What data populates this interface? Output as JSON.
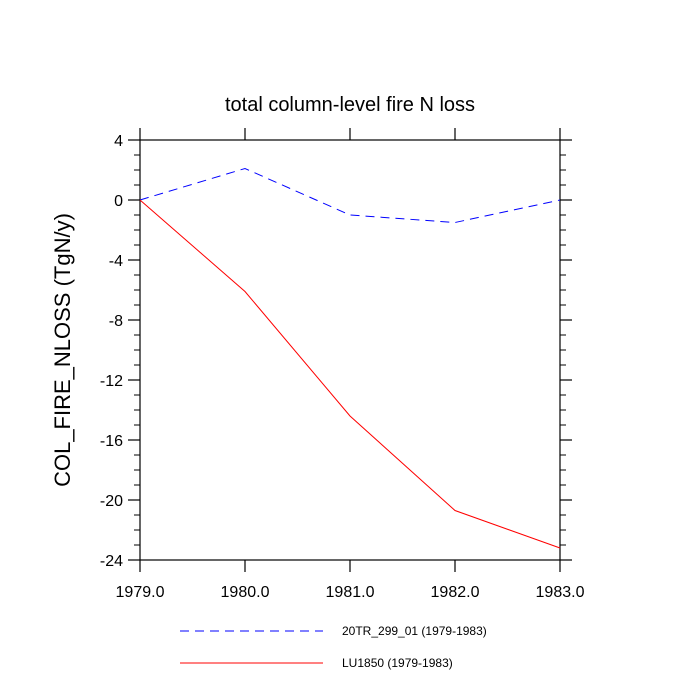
{
  "chart_data": {
    "type": "line",
    "title": "total column-level fire N loss",
    "xlabel": "",
    "ylabel": "COL_FIRE_NLOSS  (TgN/y)",
    "x": [
      1979,
      1980,
      1981,
      1982,
      1983
    ],
    "xlim": [
      1979,
      1983
    ],
    "ylim": [
      -24,
      4
    ],
    "xticks": [
      1979,
      1980,
      1981,
      1982,
      1983
    ],
    "xtick_labels": [
      "1979.0",
      "1980.0",
      "1981.0",
      "1982.0",
      "1983.0"
    ],
    "yticks": [
      4,
      0,
      -4,
      -8,
      -12,
      -16,
      -20,
      -24
    ],
    "ytick_labels": [
      "4",
      "0",
      "-4",
      "-8",
      "-12",
      "-16",
      "-20",
      "-24"
    ],
    "grid": false,
    "legend_position": "bottom",
    "series": [
      {
        "name": "20TR_299_01 (1979-1983)",
        "values": [
          0,
          2.1,
          -1.0,
          -1.5,
          0
        ],
        "color": "#0000ff",
        "style": "dashed"
      },
      {
        "name": "LU1850 (1979-1983)",
        "values": [
          0,
          -6.1,
          -14.4,
          -20.7,
          -23.2
        ],
        "color": "#ff0000",
        "style": "solid"
      }
    ]
  }
}
